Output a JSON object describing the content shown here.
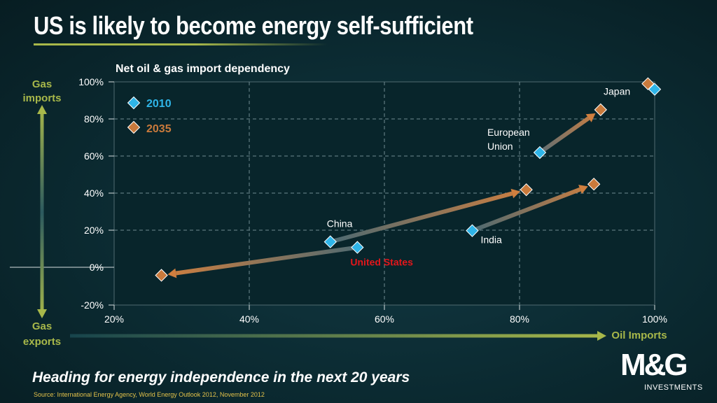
{
  "slide": {
    "title": "US is likely to become energy self-sufficient",
    "chart_heading": "Net oil & gas import dependency",
    "footer_heading": "Heading for energy independence in the next 20 years",
    "source": "Source: International Energy Agency, World Energy Outlook 2012, November 2012",
    "logo": {
      "mark": "M&G",
      "sub": "INVESTMENTS"
    }
  },
  "colors": {
    "y2010": "#2fb5e8",
    "y2035": "#c97a3c",
    "us_label": "#e3161b",
    "accent": "#a8b84a"
  },
  "chart_data": {
    "type": "scatter",
    "title": "Net oil & gas import dependency",
    "xlabel": "Oil Imports",
    "ylabel_top": "Gas imports",
    "ylabel_bottom": "Gas exports",
    "xlim": [
      20,
      100
    ],
    "ylim": [
      -20,
      100
    ],
    "xticks": [
      "20%",
      "40%",
      "60%",
      "80%",
      "100%"
    ],
    "yticks": [
      "100%",
      "80%",
      "60%",
      "40%",
      "20%",
      "0%",
      "-20%"
    ],
    "legend": [
      {
        "name": "2010",
        "key": "y2010"
      },
      {
        "name": "2035",
        "key": "y2035"
      }
    ],
    "legend_placement": "top-left",
    "grid": true,
    "series": [
      {
        "name": "Japan",
        "label": "Japan",
        "x2010": 100,
        "y2010": 96,
        "x2035": 99,
        "y2035": 99,
        "arrow": false
      },
      {
        "name": "European Union",
        "label": "European\nUnion",
        "x2010": 83,
        "y2010": 62,
        "x2035": 92,
        "y2035": 85,
        "arrow": true
      },
      {
        "name": "India",
        "label": "India",
        "x2010": 73,
        "y2010": 20,
        "x2035": 91,
        "y2035": 45,
        "arrow": true
      },
      {
        "name": "China",
        "label": "China",
        "x2010": 52,
        "y2010": 14,
        "x2035": 81,
        "y2035": 42,
        "arrow": true
      },
      {
        "name": "United States",
        "label": "United States",
        "x2010": 56,
        "y2010": 11,
        "x2035": 27,
        "y2035": -4,
        "arrow": true
      }
    ]
  }
}
